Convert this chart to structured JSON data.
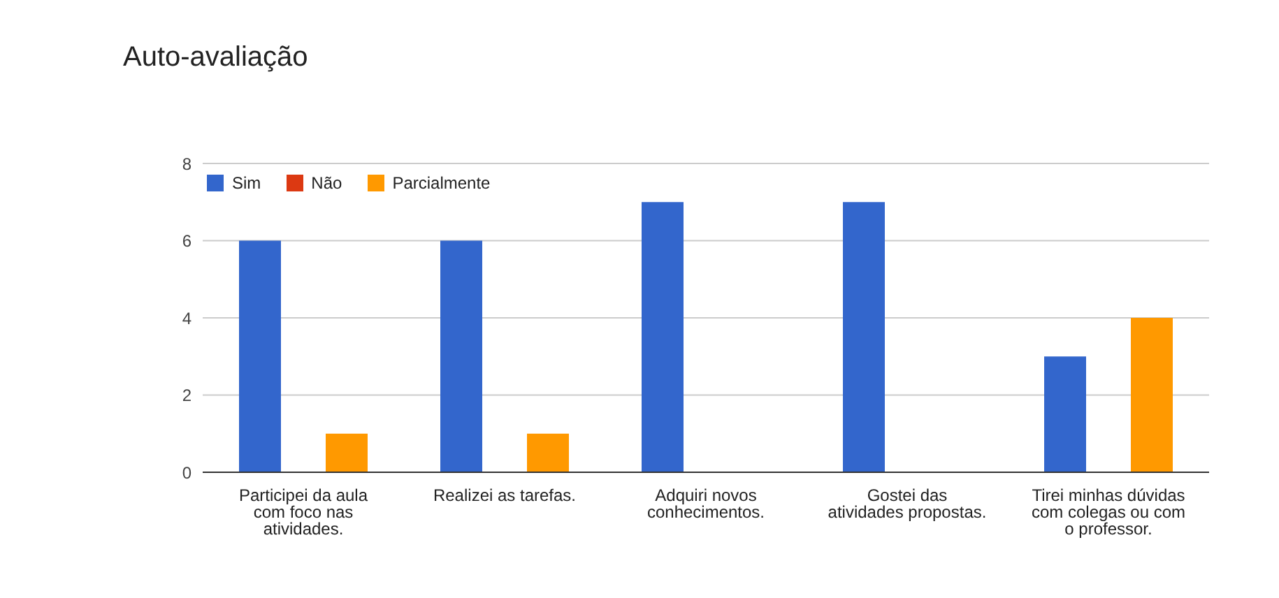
{
  "chart_data": {
    "type": "bar",
    "title": "Auto-avaliação",
    "categories": [
      "Participei da aula com foco nas atividades.",
      "Realizei as tarefas.",
      "Adquiri novos conhecimentos.",
      "Gostei das atividades propostas.",
      "Tirei minhas dúvidas com colegas ou com o professor."
    ],
    "series": [
      {
        "name": "Sim",
        "color": "#3366cc",
        "values": [
          6,
          6,
          7,
          7,
          3
        ]
      },
      {
        "name": "Não",
        "color": "#dc3912",
        "values": [
          0,
          0,
          0,
          0,
          0
        ]
      },
      {
        "name": "Parcialmente",
        "color": "#ff9900",
        "values": [
          1,
          1,
          0,
          0,
          4
        ]
      }
    ],
    "ylim": [
      0,
      8
    ],
    "yticks": [
      0,
      2,
      4,
      6,
      8
    ],
    "grid": "y",
    "legend": "top left"
  }
}
